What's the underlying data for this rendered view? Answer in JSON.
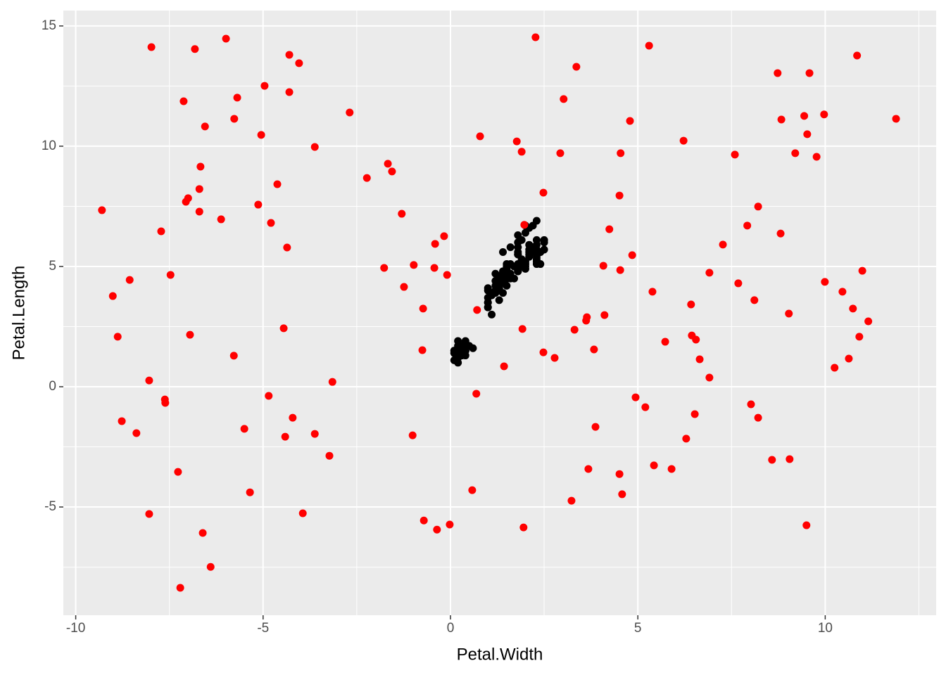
{
  "chart_data": {
    "type": "scatter",
    "x_label": "Petal.Width",
    "y_label": "Petal.Length",
    "xlim": [
      -10.33,
      12.96
    ],
    "ylim": [
      -9.5,
      15.64
    ],
    "xticks": [
      -10,
      -5,
      0,
      5,
      10
    ],
    "yticks": [
      -5,
      0,
      5,
      10,
      15
    ],
    "minor_xticks": [
      -7.5,
      -2.5,
      2.5,
      7.5,
      12.5
    ],
    "minor_yticks": [
      -7.5,
      -2.5,
      2.5,
      7.5,
      12.5
    ],
    "grid": true,
    "series": [
      {
        "color": "#000000",
        "x": [
          0.2,
          0.2,
          0.2,
          0.2,
          0.2,
          0.4,
          0.3,
          0.2,
          0.2,
          0.1,
          0.2,
          0.2,
          0.1,
          0.1,
          0.2,
          0.4,
          0.4,
          0.3,
          0.3,
          0.3,
          0.2,
          0.4,
          0.2,
          0.5,
          0.2,
          0.2,
          0.4,
          0.2,
          0.2,
          0.2,
          0.2,
          0.4,
          0.1,
          0.2,
          0.2,
          0.2,
          0.2,
          0.1,
          0.2,
          0.2,
          0.3,
          0.3,
          0.2,
          0.6,
          0.4,
          0.3,
          0.2,
          0.2,
          0.2,
          0.2,
          1.4,
          1.5,
          1.5,
          1.3,
          1.5,
          1.3,
          1.6,
          1.0,
          1.3,
          1.4,
          1.0,
          1.5,
          1.0,
          1.4,
          1.3,
          1.4,
          1.5,
          1.0,
          1.5,
          1.1,
          1.8,
          1.3,
          1.5,
          1.2,
          1.3,
          1.4,
          1.4,
          1.7,
          1.5,
          1.0,
          1.1,
          1.0,
          1.2,
          1.6,
          1.5,
          1.6,
          1.5,
          1.3,
          1.3,
          1.3,
          1.2,
          1.4,
          1.2,
          1.0,
          1.3,
          1.2,
          1.3,
          1.3,
          1.1,
          1.3,
          2.5,
          1.9,
          2.1,
          1.8,
          2.2,
          2.1,
          1.7,
          1.8,
          1.8,
          2.5,
          2.0,
          1.9,
          2.1,
          2.0,
          2.4,
          2.3,
          1.8,
          2.2,
          2.3,
          1.5,
          2.3,
          2.0,
          2.0,
          1.8,
          2.1,
          1.8,
          1.8,
          1.8,
          2.1,
          1.6,
          1.9,
          2.0,
          2.2,
          1.5,
          1.4,
          2.3,
          2.4,
          1.8,
          1.8,
          2.1,
          2.4,
          2.3,
          1.9,
          2.3,
          2.5,
          2.3,
          1.9,
          2.0,
          2.3,
          1.8
        ],
        "values": [
          1.4,
          1.4,
          1.3,
          1.5,
          1.4,
          1.7,
          1.4,
          1.5,
          1.4,
          1.5,
          1.5,
          1.6,
          1.4,
          1.1,
          1.2,
          1.5,
          1.3,
          1.4,
          1.7,
          1.5,
          1.7,
          1.5,
          1.0,
          1.7,
          1.9,
          1.6,
          1.6,
          1.5,
          1.4,
          1.6,
          1.6,
          1.5,
          1.5,
          1.4,
          1.5,
          1.2,
          1.3,
          1.4,
          1.3,
          1.5,
          1.3,
          1.3,
          1.3,
          1.6,
          1.9,
          1.4,
          1.6,
          1.4,
          1.5,
          1.4,
          4.7,
          4.5,
          4.9,
          4.0,
          4.6,
          4.5,
          4.7,
          3.3,
          4.6,
          3.9,
          3.5,
          4.2,
          4.0,
          4.7,
          3.6,
          4.4,
          4.5,
          4.1,
          4.5,
          3.9,
          4.8,
          4.0,
          4.9,
          4.7,
          4.3,
          4.4,
          4.8,
          5.0,
          4.5,
          3.5,
          3.8,
          3.7,
          3.9,
          5.1,
          4.5,
          4.5,
          4.7,
          4.4,
          4.1,
          4.0,
          4.4,
          4.6,
          4.0,
          3.3,
          4.2,
          4.2,
          4.2,
          4.3,
          3.0,
          4.1,
          6.0,
          5.1,
          5.9,
          5.6,
          5.8,
          6.6,
          4.5,
          6.3,
          5.8,
          6.1,
          5.1,
          5.3,
          5.5,
          5.0,
          5.1,
          5.3,
          5.5,
          6.7,
          6.9,
          5.0,
          5.7,
          4.9,
          6.7,
          4.9,
          5.7,
          6.0,
          4.8,
          4.9,
          5.6,
          5.8,
          6.1,
          6.4,
          5.6,
          5.1,
          5.6,
          6.1,
          5.6,
          5.5,
          4.8,
          5.4,
          5.6,
          5.1,
          5.1,
          5.9,
          5.7,
          5.2,
          5.0,
          5.2,
          5.4,
          5.1
        ]
      },
      {
        "color": "#ff0000",
        "x": [
          -9.3,
          -9.01,
          -8.88,
          -8.56,
          -8.77,
          -8.38,
          -7.98,
          -8.04,
          -8.04,
          -7.72,
          -7.62,
          -7.61,
          -7.47,
          -7.27,
          -7.21,
          -7.12,
          -7.06,
          -7.0,
          -6.95,
          -6.82,
          -6.7,
          -6.7,
          -6.67,
          -6.61,
          -6.55,
          -6.4,
          -6.12,
          -5.99,
          -5.78,
          -5.77,
          -5.69,
          -5.5,
          -5.35,
          -5.13,
          -5.05,
          -4.96,
          -4.85,
          -4.79,
          -4.62,
          -4.45,
          -4.41,
          -4.36,
          -4.3,
          -4.3,
          -4.21,
          -4.04,
          -3.94,
          -3.62,
          -3.62,
          -3.23,
          -3.15,
          -2.69,
          -2.23,
          -1.77,
          -1.67,
          -1.56,
          -1.3,
          -1.24,
          -1.01,
          -0.98,
          -0.75,
          -0.73,
          -0.71,
          -0.43,
          -0.41,
          -0.36,
          -0.17,
          -0.09,
          -0.02,
          0.58,
          0.69,
          0.71,
          0.79,
          1.43,
          1.77,
          1.9,
          1.92,
          1.95,
          1.97,
          2.27,
          2.48,
          2.48,
          2.78,
          2.93,
          3.02,
          3.23,
          3.31,
          3.36,
          3.62,
          3.64,
          3.68,
          3.83,
          3.87,
          4.08,
          4.11,
          4.24,
          4.51,
          4.51,
          4.53,
          4.54,
          4.58,
          4.79,
          4.85,
          4.94,
          5.2,
          5.3,
          5.39,
          5.43,
          5.73,
          5.9,
          6.22,
          6.29,
          6.42,
          6.44,
          6.52,
          6.55,
          6.65,
          6.91,
          6.91,
          7.27,
          7.59,
          7.68,
          7.92,
          8.02,
          8.11,
          8.21,
          8.21,
          8.58,
          8.73,
          8.81,
          8.83,
          9.03,
          9.05,
          9.2,
          9.44,
          9.5,
          9.52,
          9.58,
          9.77,
          9.97,
          9.99,
          10.25,
          10.46,
          10.63,
          10.74,
          10.85,
          10.91,
          10.99,
          11.15,
          11.89
        ],
        "values": [
          7.34,
          3.77,
          2.08,
          4.44,
          -1.43,
          -1.93,
          14.12,
          0.26,
          -5.29,
          6.46,
          -0.53,
          -0.67,
          4.65,
          -3.54,
          -8.36,
          11.87,
          7.69,
          7.84,
          2.16,
          14.04,
          8.22,
          7.28,
          9.15,
          -6.08,
          10.82,
          -7.49,
          6.96,
          14.47,
          1.29,
          11.14,
          12.02,
          -1.75,
          -4.39,
          7.57,
          10.47,
          12.51,
          -0.38,
          6.81,
          8.42,
          2.43,
          -2.08,
          5.79,
          13.8,
          12.25,
          -1.29,
          13.45,
          -5.26,
          9.97,
          -1.96,
          -2.87,
          0.2,
          11.4,
          8.68,
          4.94,
          9.27,
          8.95,
          7.19,
          4.15,
          -2.02,
          5.06,
          1.52,
          3.25,
          -5.56,
          4.94,
          5.94,
          -5.94,
          6.26,
          4.65,
          -5.73,
          -4.3,
          -0.29,
          3.19,
          10.41,
          0.85,
          10.2,
          9.77,
          2.4,
          -5.85,
          6.73,
          14.53,
          8.07,
          1.43,
          1.2,
          9.71,
          11.96,
          -4.74,
          2.37,
          13.3,
          2.75,
          2.89,
          -3.42,
          1.55,
          -1.67,
          5.03,
          2.98,
          6.55,
          7.95,
          -3.63,
          4.85,
          9.71,
          -4.47,
          11.05,
          5.47,
          -0.44,
          -0.85,
          14.18,
          3.95,
          -3.27,
          1.87,
          -3.42,
          10.23,
          -2.16,
          3.42,
          2.13,
          -1.14,
          1.96,
          1.14,
          0.38,
          4.74,
          5.91,
          9.65,
          4.3,
          6.7,
          -0.73,
          3.6,
          7.49,
          -1.29,
          -3.04,
          13.04,
          6.37,
          11.11,
          3.04,
          -3.01,
          9.71,
          11.26,
          -5.76,
          10.5,
          13.04,
          9.56,
          11.32,
          4.36,
          0.79,
          3.95,
          1.17,
          3.25,
          13.77,
          2.08,
          4.82,
          2.72,
          11.14
        ]
      }
    ]
  }
}
